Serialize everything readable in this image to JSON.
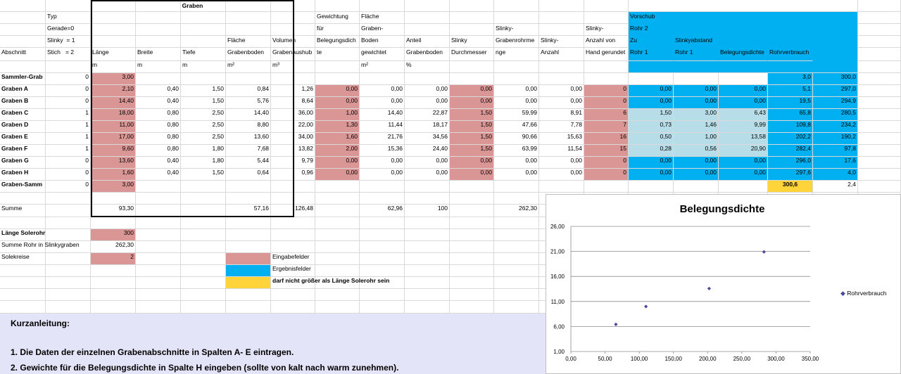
{
  "sheet": {
    "group_title": "Graben",
    "headers": [
      {
        "col": 0,
        "text": "Abschnitt"
      },
      {
        "col": 1,
        "text": "Typ\nGerade=0\nSlinky  = 1\nStich   = 2"
      },
      {
        "col": 2,
        "text": "Länge"
      },
      {
        "col": 3,
        "text": "Breite"
      },
      {
        "col": 4,
        "text": "Tiefe"
      },
      {
        "col": 5,
        "text": "Fläche\nGrabenboden"
      },
      {
        "col": 6,
        "text": "Volumen\nGrabenaushub"
      },
      {
        "col": 7,
        "text": "Gewichtung\nfür\nBelegungsdich\nte"
      },
      {
        "col": 8,
        "text": "Fläche\nGraben-\nBoden\ngewichtet"
      },
      {
        "col": 9,
        "text": "Anteil\nGrabenboden"
      },
      {
        "col": 10,
        "text": "Slinky\nDurchmesser"
      },
      {
        "col": 11,
        "text": "Slinky-\nGrabenrohrme\nnge"
      },
      {
        "col": 12,
        "text": "Slinky-\nAnzahl"
      },
      {
        "col": 13,
        "text": "Slinky-\nAnzahl von\nHand gerundet"
      },
      {
        "col": 14,
        "text": "Vorschub\nRohr 2\nZu\nRohr 1"
      },
      {
        "col": 15,
        "text": "\n\nSlinkyabstand\nRohr 1"
      },
      {
        "col": 16,
        "text": "Belegungsdichte"
      },
      {
        "col": 17,
        "text": "Rohrverbrauch"
      }
    ],
    "units": [
      {
        "col": 2,
        "text": "m"
      },
      {
        "col": 3,
        "text": "m"
      },
      {
        "col": 4,
        "text": "m"
      },
      {
        "col": 5,
        "text": "m²"
      },
      {
        "col": 6,
        "text": "m³"
      },
      {
        "col": 8,
        "text": "m²"
      },
      {
        "col": 9,
        "text": "%"
      }
    ],
    "rows": [
      [
        "Sammler-Grab",
        "0",
        "3,00",
        "",
        "",
        "",
        "",
        "",
        "",
        "",
        "",
        "",
        "",
        "",
        "",
        "",
        "",
        "3,0",
        "300,0"
      ],
      [
        "Graben A",
        "0",
        "2,10",
        "0,40",
        "1,50",
        "0,84",
        "1,26",
        "0,00",
        "0,00",
        "0,00",
        "0,00",
        "0,00",
        "0,00",
        "0",
        "0,00",
        "0,00",
        "0,00",
        "5,1",
        "297,0"
      ],
      [
        "Graben B",
        "0",
        "14,40",
        "0,40",
        "1,50",
        "5,76",
        "8,64",
        "0,00",
        "0,00",
        "0,00",
        "0,00",
        "0,00",
        "0,00",
        "0",
        "0,00",
        "0,00",
        "0,00",
        "19,5",
        "294,9"
      ],
      [
        "Graben C",
        "1",
        "18,00",
        "0,80",
        "2,50",
        "14,40",
        "36,00",
        "1,00",
        "14,40",
        "22,87",
        "1,50",
        "59,99",
        "8,91",
        "6",
        "1,50",
        "3,00",
        "6,43",
        "65,8",
        "280,5"
      ],
      [
        "Graben D",
        "1",
        "11,00",
        "0,80",
        "2,50",
        "8,80",
        "22,00",
        "1,30",
        "11,44",
        "18,17",
        "1,50",
        "47,66",
        "7,78",
        "7",
        "0,73",
        "1,46",
        "9,99",
        "109,8",
        "234,2"
      ],
      [
        "Graben E",
        "1",
        "17,00",
        "0,80",
        "2,50",
        "13,60",
        "34,00",
        "1,60",
        "21,76",
        "34,56",
        "1,50",
        "90,66",
        "15,63",
        "16",
        "0,50",
        "1,00",
        "13,58",
        "202,2",
        "190,2"
      ],
      [
        "Graben F",
        "1",
        "9,60",
        "0,80",
        "1,80",
        "7,68",
        "13,82",
        "2,00",
        "15,36",
        "24,40",
        "1,50",
        "63,99",
        "11,54",
        "15",
        "0,28",
        "0,56",
        "20,90",
        "282,4",
        "97,8"
      ],
      [
        "Graben G",
        "0",
        "13,60",
        "0,40",
        "1,80",
        "5,44",
        "9,79",
        "0,00",
        "0,00",
        "0,00",
        "0,00",
        "0,00",
        "0,00",
        "0",
        "0,00",
        "0,00",
        "0,00",
        "296,0",
        "17,6"
      ],
      [
        "Graben H",
        "0",
        "1,60",
        "0,40",
        "1,50",
        "0,64",
        "0,96",
        "0,00",
        "0,00",
        "0,00",
        "0,00",
        "0,00",
        "0,00",
        "0",
        "0,00",
        "0,00",
        "0,00",
        "297,6",
        "4,0"
      ],
      [
        "Graben-Samm",
        "0",
        "3,00",
        "",
        "",
        "",
        "",
        "",
        "",
        "",
        "",
        "",
        "",
        "",
        "",
        "",
        "",
        "300,6",
        "2,4"
      ]
    ],
    "summe": {
      "label": "Summe",
      "laenge": "93,30",
      "flaeche": "57,16",
      "volumen": "126,48",
      "flaeche_gew": "62,96",
      "anteil": "100",
      "rohrmenge": "262,30"
    },
    "laenge_solerohr": {
      "label": "Länge Solerohr",
      "value": "300"
    },
    "summe_rohr": {
      "label": "Summe Rohr in Slinkygraben",
      "value": "262,30"
    },
    "solekreise": {
      "label": "Solekreise",
      "value": "2"
    },
    "legend_items": [
      {
        "label": "Eingabefelder",
        "color": "#da9694"
      },
      {
        "label": "Ergebnisfelder",
        "color": "#00b0f0"
      },
      {
        "label": "darf nicht größer als Länge Solerohr sein",
        "color": "#ffd43b"
      }
    ]
  },
  "instructions": {
    "title": "Kurzanleitung:",
    "line1": "1. Die Daten der einzelnen Grabenabschnitte in Spalten A- E eintragen.",
    "line2": "2. Gewichte für die Belegungsdichte in Spalte H eingeben (sollte von kalt nach warm zunehmen)."
  },
  "colors": {
    "input": "#da9694",
    "result": "#00b0f0",
    "result_light": "#b7dee8",
    "warning": "#ffd43b",
    "marker": "#4a4a9a"
  },
  "chart_data": {
    "type": "scatter",
    "title": "Belegungsdichte",
    "series": [
      {
        "name": "Rohrverbrauch",
        "points": [
          [
            65.8,
            6.43
          ],
          [
            109.8,
            9.99
          ],
          [
            202.2,
            13.58
          ],
          [
            282.4,
            20.9
          ]
        ]
      }
    ],
    "x_ticks": [
      "0,00",
      "50,00",
      "100,00",
      "150,00",
      "200,00",
      "250,00",
      "300,00",
      "350,00"
    ],
    "y_ticks": [
      "1,00",
      "6,00",
      "11,00",
      "16,00",
      "21,00",
      "26,00"
    ],
    "xlim": [
      0,
      350
    ],
    "ylim": [
      1,
      26
    ],
    "grid": true,
    "legend": "right"
  }
}
